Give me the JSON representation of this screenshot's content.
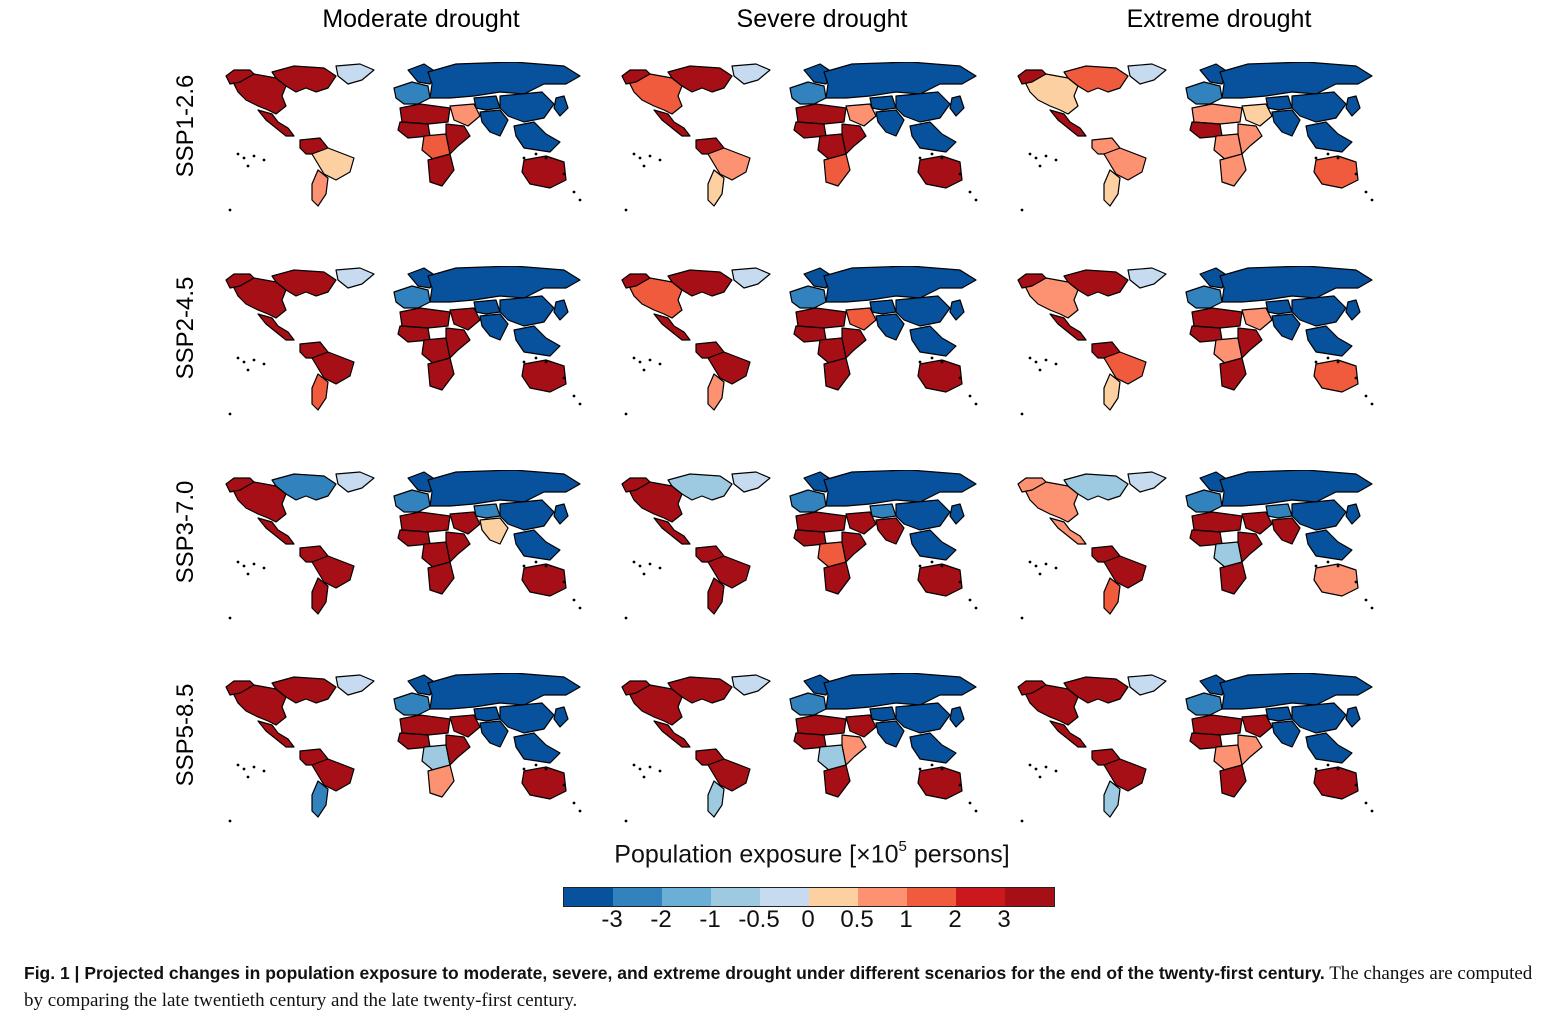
{
  "figure": {
    "columns": [
      "Moderate drought",
      "Severe drought",
      "Extreme drought"
    ],
    "rows": [
      "SSP1-2.6",
      "SSP2-4.5",
      "SSP3-7.0",
      "SSP5-8.5"
    ]
  },
  "map_regions": [
    "North America",
    "Canada",
    "Alaska",
    "Greenland",
    "Mexico & Central America",
    "Northern South America",
    "Brazil",
    "Southern South America",
    "Europe",
    "Scandinavia",
    "Russia & Northern Asia",
    "North Africa",
    "West Africa",
    "Central Africa",
    "East Africa",
    "Southern Africa",
    "Middle East",
    "Central Asia",
    "South Asia",
    "China",
    "Southeast Asia",
    "Japan",
    "Australia"
  ],
  "map_values": [
    [
      [
        3,
        3,
        3,
        -0.5,
        3,
        3,
        0.5,
        1,
        -2,
        -3,
        -3,
        3,
        3,
        2,
        3,
        3,
        1,
        -3,
        -3,
        -3,
        -3,
        -3,
        3
      ],
      [
        2,
        3,
        3,
        -0.5,
        3,
        3,
        1,
        0.5,
        -2,
        -3,
        -3,
        3,
        3,
        3,
        3,
        2,
        1,
        -3,
        -3,
        -3,
        -3,
        -3,
        3
      ],
      [
        0.5,
        2,
        3,
        -0.5,
        3,
        1,
        1,
        0.5,
        -2,
        -3,
        -3,
        1,
        3,
        1,
        1,
        1,
        0.5,
        -3,
        -3,
        -3,
        -3,
        -3,
        2
      ]
    ],
    [
      [
        3,
        3,
        3,
        -0.5,
        3,
        3,
        3,
        2,
        -2,
        -3,
        -3,
        3,
        3,
        3,
        3,
        3,
        3,
        -3,
        -3,
        -3,
        -3,
        -3,
        3
      ],
      [
        2,
        3,
        3,
        -0.5,
        3,
        3,
        3,
        1,
        -2,
        -3,
        -3,
        3,
        3,
        3,
        3,
        3,
        2,
        -3,
        -3,
        -3,
        -3,
        -3,
        3
      ],
      [
        1,
        3,
        3,
        -0.5,
        3,
        3,
        2,
        0.5,
        -2,
        -3,
        -3,
        3,
        3,
        1,
        3,
        3,
        1,
        -3,
        -3,
        -3,
        -3,
        -3,
        2
      ]
    ],
    [
      [
        3,
        -2,
        3,
        -0.5,
        3,
        3,
        3,
        3,
        -2,
        -3,
        -3,
        3,
        3,
        3,
        3,
        3,
        3,
        -2,
        0.5,
        -3,
        -3,
        -3,
        3
      ],
      [
        3,
        -1,
        3,
        -0.5,
        3,
        3,
        3,
        3,
        -2,
        -3,
        -3,
        3,
        3,
        2,
        3,
        3,
        3,
        -2,
        3,
        -3,
        -3,
        -3,
        3
      ],
      [
        1,
        -1,
        1,
        -0.5,
        1,
        3,
        3,
        2,
        -2,
        -3,
        -3,
        3,
        3,
        -1,
        3,
        3,
        3,
        -2,
        3,
        -3,
        -3,
        -3,
        1
      ]
    ],
    [
      [
        3,
        3,
        3,
        -0.5,
        3,
        3,
        3,
        -2,
        -2,
        -3,
        -3,
        3,
        3,
        -1,
        3,
        1,
        3,
        -3,
        -3,
        -3,
        -3,
        -3,
        3
      ],
      [
        3,
        3,
        3,
        -0.5,
        3,
        3,
        3,
        -1,
        -2,
        -3,
        -3,
        3,
        3,
        -1,
        1,
        3,
        3,
        -3,
        -3,
        -3,
        -3,
        -3,
        3
      ],
      [
        3,
        3,
        3,
        -0.5,
        3,
        3,
        3,
        -1,
        -2,
        -3,
        -3,
        3,
        3,
        1,
        1,
        3,
        3,
        -3,
        -3,
        -3,
        -3,
        -3,
        3
      ]
    ]
  ],
  "legend": {
    "title_prefix": "Population exposure [×10",
    "title_exponent": "5",
    "title_suffix": " persons]",
    "ticks": [
      "-3",
      "-2",
      "-1",
      "-0.5",
      "0",
      "0.5",
      "1",
      "2",
      "3"
    ],
    "colors": [
      "#08519c",
      "#3182bd",
      "#6baed6",
      "#9ecae1",
      "#c6dbef",
      "#fdd0a2",
      "#fc9272",
      "#ef5b3c",
      "#cb181d",
      "#a50f15"
    ]
  },
  "caption": {
    "bold": "Fig. 1 | Projected changes in population exposure to moderate, severe, and extreme drought under different scenarios for the end of the twenty-first century.",
    "rest": " The changes are computed by comparing the late twentieth century and the late twenty-first century."
  }
}
